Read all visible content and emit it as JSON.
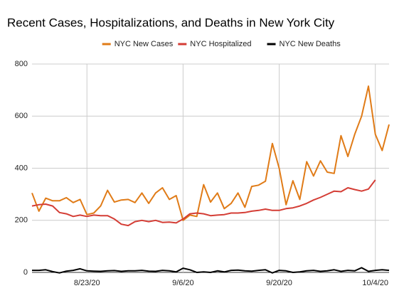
{
  "chart_data": {
    "type": "line",
    "title": "Recent Cases, Hospitalizations, and Deaths in New York City",
    "categories": [
      null,
      null,
      null,
      null,
      null,
      null,
      null,
      null,
      "8/23/20",
      null,
      null,
      null,
      null,
      null,
      null,
      null,
      null,
      null,
      null,
      null,
      null,
      null,
      "9/6/20",
      null,
      null,
      null,
      null,
      null,
      null,
      null,
      null,
      null,
      null,
      null,
      null,
      null,
      "9/20/20",
      null,
      null,
      null,
      null,
      null,
      null,
      null,
      null,
      null,
      null,
      null,
      null,
      null,
      "10/4/20",
      null,
      null
    ],
    "series": [
      {
        "name": "NYC New Cases",
        "color": "#e07b17",
        "values": [
          305,
          235,
          285,
          275,
          275,
          287,
          268,
          280,
          222,
          228,
          255,
          315,
          270,
          278,
          280,
          268,
          305,
          265,
          305,
          325,
          280,
          295,
          200,
          220,
          215,
          337,
          270,
          305,
          245,
          265,
          305,
          250,
          330,
          335,
          350,
          495,
          400,
          260,
          352,
          280,
          425,
          370,
          428,
          385,
          380,
          525,
          445,
          530,
          600,
          715,
          530,
          468,
          568
        ]
      },
      {
        "name": "NYC Hospitalized",
        "color": "#d43d35",
        "values": [
          255,
          260,
          262,
          255,
          230,
          225,
          215,
          220,
          215,
          220,
          218,
          218,
          205,
          185,
          180,
          195,
          200,
          195,
          200,
          192,
          193,
          190,
          205,
          225,
          228,
          225,
          218,
          220,
          222,
          228,
          228,
          230,
          235,
          238,
          243,
          238,
          238,
          245,
          248,
          255,
          265,
          278,
          288,
          300,
          312,
          310,
          325,
          318,
          312,
          320,
          355,
          null,
          null
        ]
      },
      {
        "name": "NYC New Deaths",
        "color": "#000000",
        "values": [
          8,
          8,
          10,
          3,
          -2,
          5,
          8,
          14,
          6,
          5,
          4,
          6,
          7,
          4,
          6,
          6,
          8,
          5,
          4,
          8,
          6,
          2,
          16,
          10,
          0,
          2,
          0,
          6,
          2,
          8,
          9,
          6,
          5,
          8,
          10,
          -2,
          8,
          6,
          0,
          2,
          6,
          8,
          4,
          6,
          10,
          4,
          8,
          6,
          18,
          4,
          8,
          10,
          8
        ]
      }
    ],
    "ylim": [
      0,
      800
    ],
    "yticks": [
      0,
      200,
      400,
      600,
      800
    ],
    "grid": true,
    "legend": "top"
  }
}
